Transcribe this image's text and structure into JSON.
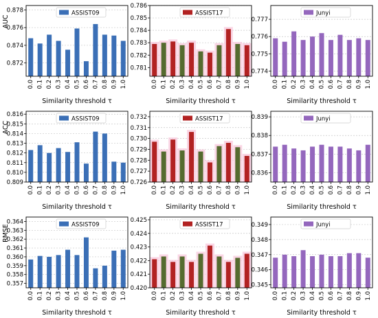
{
  "x_categories": [
    "0.0",
    "0.1",
    "0.2",
    "0.3",
    "0.4",
    "0.5",
    "0.6",
    "0.7",
    "0.8",
    "0.9",
    "1.0"
  ],
  "xlabel": "Similarity threshold τ",
  "row_labels": [
    "AUC",
    "ACC",
    "RMSE"
  ],
  "colors": {
    "ASSIST09": "#3b6fb6",
    "ASSIST17_fill": "#b22222",
    "ASSIST17_alt": "#556b2f",
    "ASSIST17_halo": "#f8c8dc",
    "Junyi": "#9467bd",
    "grid": "#c8c8c8"
  },
  "chart_data": [
    {
      "type": "bar",
      "row": "AUC",
      "legend": "ASSIST09",
      "yticks": [
        "0.872",
        "0.874",
        "0.876",
        "0.878"
      ],
      "ylim": [
        0.8705,
        0.8785
      ],
      "values": [
        0.8748,
        0.8742,
        0.8752,
        0.8745,
        0.8735,
        0.8759,
        0.8722,
        0.8764,
        0.8752,
        0.8751,
        0.8745
      ]
    },
    {
      "type": "bar",
      "row": "AUC",
      "legend": "ASSIST17",
      "yticks": [
        "0.781",
        "0.782",
        "0.783",
        "0.784",
        "0.785",
        "0.786"
      ],
      "ylim": [
        0.7803,
        0.786
      ],
      "values": [
        0.7829,
        0.783,
        0.7831,
        0.7828,
        0.783,
        0.7823,
        0.7822,
        0.7828,
        0.7841,
        0.7829,
        0.7828
      ]
    },
    {
      "type": "bar",
      "row": "AUC",
      "legend": "Junyi",
      "yticks": [
        "0.774",
        "0.775",
        "0.776",
        "0.777"
      ],
      "ylim": [
        0.7737,
        0.7778
      ],
      "values": [
        0.7759,
        0.7757,
        0.7763,
        0.7758,
        0.776,
        0.7762,
        0.7758,
        0.7761,
        0.7758,
        0.7759,
        0.7758
      ]
    },
    {
      "type": "bar",
      "row": "ACC",
      "legend": "ASSIST09",
      "yticks": [
        "0.809",
        "0.810",
        "0.811",
        "0.812",
        "0.813",
        "0.814",
        "0.815",
        "0.816"
      ],
      "ylim": [
        0.809,
        0.8163
      ],
      "values": [
        0.8123,
        0.8128,
        0.812,
        0.8125,
        0.8121,
        0.8131,
        0.8109,
        0.8142,
        0.814,
        0.8111,
        0.811
      ]
    },
    {
      "type": "bar",
      "row": "ACC",
      "legend": "ASSIST17",
      "yticks": [
        "0.726",
        "0.727",
        "0.728",
        "0.729",
        "0.730",
        "0.731",
        "0.732"
      ],
      "ylim": [
        0.726,
        0.7325
      ],
      "values": [
        0.7297,
        0.7288,
        0.7299,
        0.7289,
        0.7306,
        0.7288,
        0.7278,
        0.7293,
        0.7296,
        0.7292,
        0.7284
      ]
    },
    {
      "type": "bar",
      "row": "ACC",
      "legend": "Junyi",
      "yticks": [
        "0.836",
        "0.837",
        "0.838",
        "0.839"
      ],
      "ylim": [
        0.8355,
        0.8393
      ],
      "values": [
        0.8374,
        0.8375,
        0.8373,
        0.8372,
        0.8374,
        0.8375,
        0.8374,
        0.8374,
        0.8373,
        0.8372,
        0.8375
      ]
    },
    {
      "type": "bar",
      "row": "RMSE",
      "legend": "ASSIST09",
      "yticks": [
        "0.357",
        "0.358",
        "0.359",
        "0.360",
        "0.361",
        "0.362",
        "0.363",
        "0.364"
      ],
      "ylim": [
        0.3565,
        0.3645
      ],
      "values": [
        0.3597,
        0.3601,
        0.36,
        0.3602,
        0.3608,
        0.3602,
        0.3622,
        0.3587,
        0.359,
        0.3607,
        0.3608
      ]
    },
    {
      "type": "bar",
      "row": "RMSE",
      "legend": "ASSIST17",
      "yticks": [
        "0.420",
        "0.421",
        "0.422",
        "0.423",
        "0.424",
        "0.425"
      ],
      "ylim": [
        0.42,
        0.4252
      ],
      "values": [
        0.4221,
        0.4223,
        0.4219,
        0.4223,
        0.4219,
        0.4225,
        0.4231,
        0.4223,
        0.4219,
        0.4222,
        0.4225
      ]
    },
    {
      "type": "bar",
      "row": "RMSE",
      "legend": "Junyi",
      "yticks": [
        "0.345",
        "0.346",
        "0.347",
        "0.348",
        "0.349"
      ],
      "ylim": [
        0.3448,
        0.3495
      ],
      "values": [
        0.3468,
        0.347,
        0.3469,
        0.3473,
        0.3469,
        0.347,
        0.3469,
        0.3469,
        0.3471,
        0.3471,
        0.3468
      ]
    }
  ]
}
